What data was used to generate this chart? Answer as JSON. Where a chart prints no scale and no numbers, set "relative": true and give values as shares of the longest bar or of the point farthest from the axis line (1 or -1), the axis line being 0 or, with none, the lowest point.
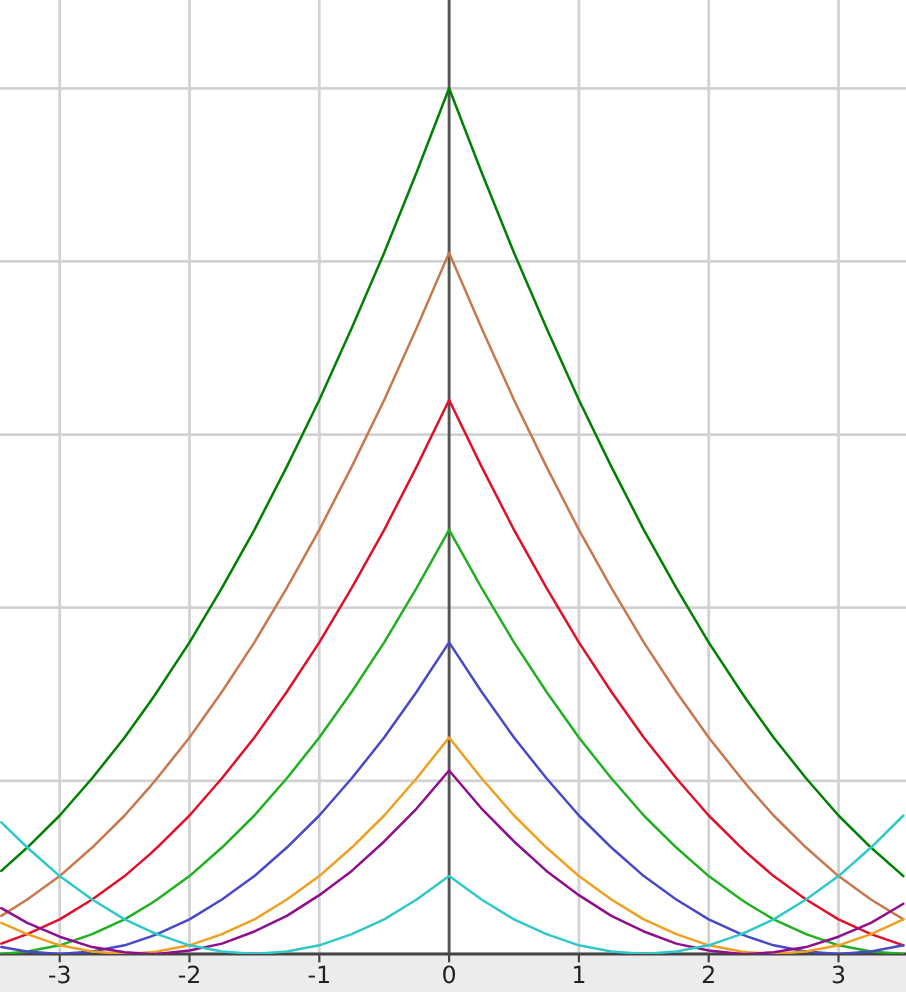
{
  "chart_data": {
    "type": "line",
    "relative": true,
    "grid": true,
    "xlim": [
      -3.46,
      3.52
    ],
    "xticks": [
      -3,
      -2,
      -1,
      0,
      1,
      2,
      3
    ],
    "x": [
      -3.45,
      -3.25,
      -3,
      -2.75,
      -2.5,
      -2.3,
      -2.25,
      -2,
      -1.75,
      -1.5,
      -1.25,
      -1,
      -0.75,
      -0.5,
      -0.25,
      0,
      0.25,
      0.5,
      0.75,
      1,
      1.25,
      1.5,
      1.75,
      2,
      2.25,
      2.3,
      2.5,
      2.75,
      3,
      3.25,
      3.5
    ],
    "series": [
      {
        "color": "#008000",
        "values": [
          0.096,
          0.123,
          0.16,
          0.203,
          0.25,
          0.292,
          0.303,
          0.36,
          0.423,
          0.49,
          0.563,
          0.64,
          0.723,
          0.81,
          0.903,
          1.0,
          0.903,
          0.81,
          0.723,
          0.64,
          0.563,
          0.49,
          0.423,
          0.36,
          0.303,
          0.292,
          0.25,
          0.203,
          0.16,
          0.123,
          0.09
        ]
      },
      {
        "color": "#c8784e",
        "values": [
          0.044,
          0.063,
          0.09,
          0.123,
          0.16,
          0.194,
          0.203,
          0.25,
          0.303,
          0.36,
          0.423,
          0.49,
          0.563,
          0.64,
          0.723,
          0.81,
          0.723,
          0.64,
          0.563,
          0.49,
          0.423,
          0.36,
          0.303,
          0.25,
          0.203,
          0.194,
          0.16,
          0.123,
          0.09,
          0.063,
          0.04
        ]
      },
      {
        "color": "#e0102a",
        "values": [
          0.012,
          0.023,
          0.04,
          0.063,
          0.09,
          0.116,
          0.123,
          0.16,
          0.203,
          0.25,
          0.303,
          0.36,
          0.423,
          0.49,
          0.563,
          0.64,
          0.563,
          0.49,
          0.423,
          0.36,
          0.303,
          0.25,
          0.203,
          0.16,
          0.123,
          0.116,
          0.09,
          0.063,
          0.04,
          0.023,
          0.01
        ]
      },
      {
        "color": "#20b020",
        "values": [
          0,
          0.003,
          0.01,
          0.023,
          0.04,
          0.058,
          0.063,
          0.09,
          0.123,
          0.16,
          0.203,
          0.25,
          0.303,
          0.36,
          0.423,
          0.49,
          0.423,
          0.36,
          0.303,
          0.25,
          0.203,
          0.16,
          0.123,
          0.09,
          0.063,
          0.058,
          0.04,
          0.023,
          0.01,
          0.003,
          0
        ]
      },
      {
        "color": "#4848c8",
        "values": [
          0.008,
          0.003,
          0,
          0.003,
          0.01,
          0.02,
          0.023,
          0.04,
          0.063,
          0.09,
          0.123,
          0.16,
          0.203,
          0.25,
          0.303,
          0.36,
          0.303,
          0.25,
          0.203,
          0.16,
          0.123,
          0.09,
          0.063,
          0.04,
          0.023,
          0.02,
          0.01,
          0.003,
          0,
          0.003,
          0.01
        ]
      },
      {
        "color": "#f0a020",
        "values": [
          0.036,
          0.023,
          0.01,
          0.003,
          0,
          0.002,
          0.003,
          0.01,
          0.023,
          0.04,
          0.063,
          0.09,
          0.123,
          0.16,
          0.203,
          0.25,
          0.203,
          0.16,
          0.123,
          0.09,
          0.063,
          0.04,
          0.023,
          0.01,
          0.003,
          0.002,
          0,
          0.003,
          0.01,
          0.023,
          0.04
        ]
      },
      {
        "color": "#8e0e8e",
        "values": [
          0.053,
          0.036,
          0.02,
          0.008,
          0.002,
          0,
          0,
          0.004,
          0.012,
          0.026,
          0.044,
          0.068,
          0.096,
          0.13,
          0.168,
          0.212,
          0.168,
          0.13,
          0.096,
          0.068,
          0.044,
          0.026,
          0.012,
          0.004,
          0,
          0,
          0.002,
          0.008,
          0.02,
          0.036,
          0.058
        ]
      },
      {
        "color": "#30c8c8",
        "values": [
          0.152,
          0.123,
          0.09,
          0.063,
          0.04,
          0.026,
          0.023,
          0.01,
          0.003,
          0,
          0.003,
          0.01,
          0.023,
          0.04,
          0.063,
          0.09,
          0.063,
          0.04,
          0.023,
          0.01,
          0.003,
          0,
          0.003,
          0.01,
          0.023,
          0.026,
          0.04,
          0.063,
          0.09,
          0.123,
          0.16
        ]
      }
    ]
  }
}
